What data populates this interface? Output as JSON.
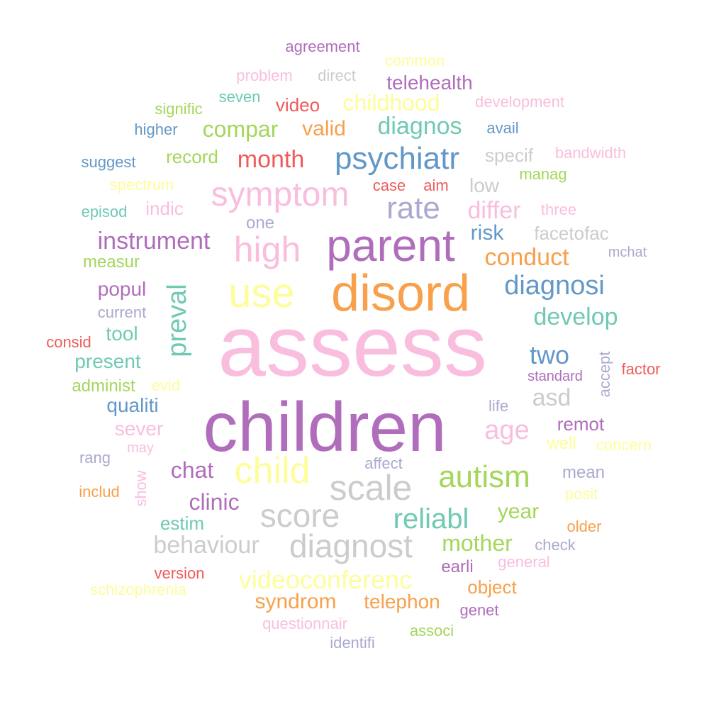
{
  "palette": {
    "pink": "#f9bede",
    "purple": "#b06dbb",
    "orange": "#f8a04c",
    "gray": "#cccccc",
    "yellow": "#fdfd9a",
    "teal": "#6fc9b3",
    "blue": "#6298c8",
    "green": "#a4d65a",
    "lavender": "#aaaad0",
    "red": "#ef5a5a"
  },
  "words": [
    {
      "text": "assess",
      "color": "pink"
    },
    {
      "text": "children",
      "color": "purple"
    },
    {
      "text": "disord",
      "color": "orange"
    },
    {
      "text": "parent",
      "color": "purple"
    },
    {
      "text": "use",
      "color": "yellow"
    },
    {
      "text": "high",
      "color": "pink"
    },
    {
      "text": "child",
      "color": "yellow"
    },
    {
      "text": "scale",
      "color": "gray"
    },
    {
      "text": "score",
      "color": "gray"
    },
    {
      "text": "diagnost",
      "color": "gray"
    },
    {
      "text": "symptom",
      "color": "pink"
    },
    {
      "text": "psychiatr",
      "color": "blue"
    },
    {
      "text": "rate",
      "color": "lavender"
    },
    {
      "text": "autism",
      "color": "green"
    },
    {
      "text": "reliabl",
      "color": "teal"
    },
    {
      "text": "preval",
      "color": "teal"
    },
    {
      "text": "diagnosi",
      "color": "blue"
    },
    {
      "text": "age",
      "color": "pink"
    },
    {
      "text": "develop",
      "color": "teal"
    },
    {
      "text": "two",
      "color": "blue"
    },
    {
      "text": "behaviour",
      "color": "gray"
    },
    {
      "text": "videoconferenc",
      "color": "yellow"
    },
    {
      "text": "conduct",
      "color": "orange"
    },
    {
      "text": "instrument",
      "color": "purple"
    },
    {
      "text": "diagnos",
      "color": "teal"
    },
    {
      "text": "month",
      "color": "red"
    },
    {
      "text": "compar",
      "color": "green"
    },
    {
      "text": "childhood",
      "color": "yellow"
    },
    {
      "text": "differ",
      "color": "pink"
    },
    {
      "text": "risk",
      "color": "blue"
    },
    {
      "text": "asd",
      "color": "gray"
    },
    {
      "text": "chat",
      "color": "purple"
    },
    {
      "text": "clinic",
      "color": "purple"
    },
    {
      "text": "mother",
      "color": "green"
    },
    {
      "text": "year",
      "color": "green"
    },
    {
      "text": "syndrom",
      "color": "orange"
    },
    {
      "text": "telephon",
      "color": "orange"
    },
    {
      "text": "telehealth",
      "color": "purple"
    },
    {
      "text": "valid",
      "color": "orange"
    },
    {
      "text": "facetofac",
      "color": "gray"
    },
    {
      "text": "popul",
      "color": "purple"
    },
    {
      "text": "present",
      "color": "teal"
    },
    {
      "text": "tool",
      "color": "teal"
    },
    {
      "text": "qualiti",
      "color": "blue"
    },
    {
      "text": "sever",
      "color": "pink"
    },
    {
      "text": "remot",
      "color": "purple"
    },
    {
      "text": "low",
      "color": "gray"
    },
    {
      "text": "specif",
      "color": "gray"
    },
    {
      "text": "record",
      "color": "green"
    },
    {
      "text": "estim",
      "color": "teal"
    },
    {
      "text": "object",
      "color": "orange"
    },
    {
      "text": "video",
      "color": "red"
    },
    {
      "text": "indic",
      "color": "pink"
    },
    {
      "text": "measur",
      "color": "green"
    },
    {
      "text": "mean",
      "color": "lavender"
    },
    {
      "text": "accept",
      "color": "lavender"
    },
    {
      "text": "administ",
      "color": "green"
    },
    {
      "text": "earli",
      "color": "purple"
    },
    {
      "text": "one",
      "color": "lavender"
    },
    {
      "text": "well",
      "color": "yellow"
    },
    {
      "text": "spectrum",
      "color": "yellow"
    },
    {
      "text": "posit",
      "color": "yellow"
    },
    {
      "text": "older",
      "color": "orange"
    },
    {
      "text": "show",
      "color": "pink"
    },
    {
      "text": "agreement",
      "color": "purple"
    },
    {
      "text": "problem",
      "color": "pink"
    },
    {
      "text": "direct",
      "color": "gray"
    },
    {
      "text": "common",
      "color": "yellow"
    },
    {
      "text": "seven",
      "color": "teal"
    },
    {
      "text": "signific",
      "color": "green"
    },
    {
      "text": "development",
      "color": "pink"
    },
    {
      "text": "higher",
      "color": "blue"
    },
    {
      "text": "avail",
      "color": "blue"
    },
    {
      "text": "suggest",
      "color": "blue"
    },
    {
      "text": "bandwidth",
      "color": "pink"
    },
    {
      "text": "manag",
      "color": "green"
    },
    {
      "text": "case",
      "color": "red"
    },
    {
      "text": "aim",
      "color": "red"
    },
    {
      "text": "episod",
      "color": "teal"
    },
    {
      "text": "three",
      "color": "pink"
    },
    {
      "text": "mchat",
      "color": "lavender"
    },
    {
      "text": "current",
      "color": "lavender"
    },
    {
      "text": "consid",
      "color": "red"
    },
    {
      "text": "evid",
      "color": "yellow"
    },
    {
      "text": "standard",
      "color": "purple"
    },
    {
      "text": "factor",
      "color": "red"
    },
    {
      "text": "life",
      "color": "lavender"
    },
    {
      "text": "may",
      "color": "pink"
    },
    {
      "text": "concern",
      "color": "yellow"
    },
    {
      "text": "rang",
      "color": "lavender"
    },
    {
      "text": "affect",
      "color": "lavender"
    },
    {
      "text": "includ",
      "color": "orange"
    },
    {
      "text": "check",
      "color": "lavender"
    },
    {
      "text": "general",
      "color": "pink"
    },
    {
      "text": "version",
      "color": "red"
    },
    {
      "text": "schizophrenia",
      "color": "yellow"
    },
    {
      "text": "genet",
      "color": "purple"
    },
    {
      "text": "questionnair",
      "color": "pink"
    },
    {
      "text": "associ",
      "color": "green"
    },
    {
      "text": "identifi",
      "color": "lavender"
    }
  ]
}
